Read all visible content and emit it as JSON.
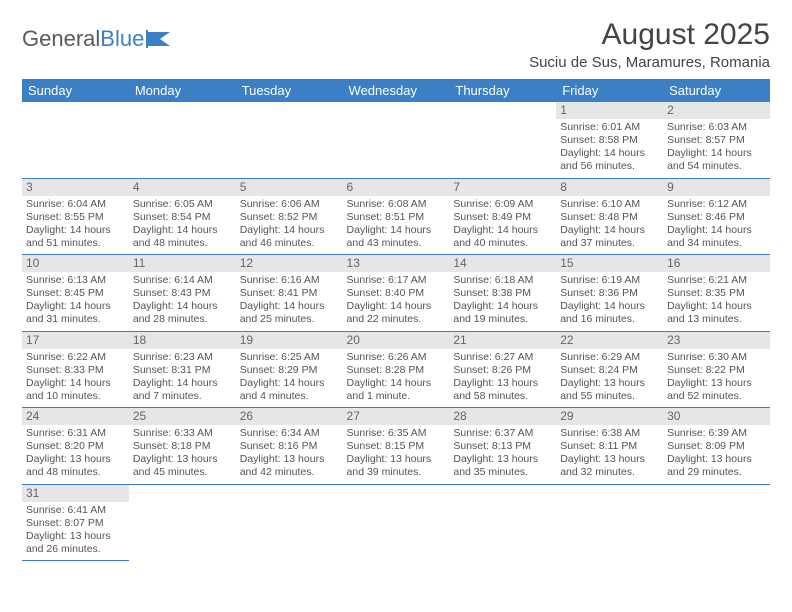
{
  "brand": {
    "part1": "General",
    "part2": "Blue"
  },
  "title": "August 2025",
  "location": "Suciu de Sus, Maramures, Romania",
  "colors": {
    "header_bg": "#3b7fc4",
    "header_fg": "#ffffff",
    "daynum_bg": "#e6e6e6",
    "rule": "#3b7fc4",
    "text": "#555555"
  },
  "dayHeaders": [
    "Sunday",
    "Monday",
    "Tuesday",
    "Wednesday",
    "Thursday",
    "Friday",
    "Saturday"
  ],
  "calendar": {
    "startWeekday": 5,
    "daysInMonth": 31
  },
  "days": {
    "1": {
      "sunrise": "6:01 AM",
      "sunset": "8:58 PM",
      "daylight": "14 hours and 56 minutes."
    },
    "2": {
      "sunrise": "6:03 AM",
      "sunset": "8:57 PM",
      "daylight": "14 hours and 54 minutes."
    },
    "3": {
      "sunrise": "6:04 AM",
      "sunset": "8:55 PM",
      "daylight": "14 hours and 51 minutes."
    },
    "4": {
      "sunrise": "6:05 AM",
      "sunset": "8:54 PM",
      "daylight": "14 hours and 48 minutes."
    },
    "5": {
      "sunrise": "6:06 AM",
      "sunset": "8:52 PM",
      "daylight": "14 hours and 46 minutes."
    },
    "6": {
      "sunrise": "6:08 AM",
      "sunset": "8:51 PM",
      "daylight": "14 hours and 43 minutes."
    },
    "7": {
      "sunrise": "6:09 AM",
      "sunset": "8:49 PM",
      "daylight": "14 hours and 40 minutes."
    },
    "8": {
      "sunrise": "6:10 AM",
      "sunset": "8:48 PM",
      "daylight": "14 hours and 37 minutes."
    },
    "9": {
      "sunrise": "6:12 AM",
      "sunset": "8:46 PM",
      "daylight": "14 hours and 34 minutes."
    },
    "10": {
      "sunrise": "6:13 AM",
      "sunset": "8:45 PM",
      "daylight": "14 hours and 31 minutes."
    },
    "11": {
      "sunrise": "6:14 AM",
      "sunset": "8:43 PM",
      "daylight": "14 hours and 28 minutes."
    },
    "12": {
      "sunrise": "6:16 AM",
      "sunset": "8:41 PM",
      "daylight": "14 hours and 25 minutes."
    },
    "13": {
      "sunrise": "6:17 AM",
      "sunset": "8:40 PM",
      "daylight": "14 hours and 22 minutes."
    },
    "14": {
      "sunrise": "6:18 AM",
      "sunset": "8:38 PM",
      "daylight": "14 hours and 19 minutes."
    },
    "15": {
      "sunrise": "6:19 AM",
      "sunset": "8:36 PM",
      "daylight": "14 hours and 16 minutes."
    },
    "16": {
      "sunrise": "6:21 AM",
      "sunset": "8:35 PM",
      "daylight": "14 hours and 13 minutes."
    },
    "17": {
      "sunrise": "6:22 AM",
      "sunset": "8:33 PM",
      "daylight": "14 hours and 10 minutes."
    },
    "18": {
      "sunrise": "6:23 AM",
      "sunset": "8:31 PM",
      "daylight": "14 hours and 7 minutes."
    },
    "19": {
      "sunrise": "6:25 AM",
      "sunset": "8:29 PM",
      "daylight": "14 hours and 4 minutes."
    },
    "20": {
      "sunrise": "6:26 AM",
      "sunset": "8:28 PM",
      "daylight": "14 hours and 1 minute."
    },
    "21": {
      "sunrise": "6:27 AM",
      "sunset": "8:26 PM",
      "daylight": "13 hours and 58 minutes."
    },
    "22": {
      "sunrise": "6:29 AM",
      "sunset": "8:24 PM",
      "daylight": "13 hours and 55 minutes."
    },
    "23": {
      "sunrise": "6:30 AM",
      "sunset": "8:22 PM",
      "daylight": "13 hours and 52 minutes."
    },
    "24": {
      "sunrise": "6:31 AM",
      "sunset": "8:20 PM",
      "daylight": "13 hours and 48 minutes."
    },
    "25": {
      "sunrise": "6:33 AM",
      "sunset": "8:18 PM",
      "daylight": "13 hours and 45 minutes."
    },
    "26": {
      "sunrise": "6:34 AM",
      "sunset": "8:16 PM",
      "daylight": "13 hours and 42 minutes."
    },
    "27": {
      "sunrise": "6:35 AM",
      "sunset": "8:15 PM",
      "daylight": "13 hours and 39 minutes."
    },
    "28": {
      "sunrise": "6:37 AM",
      "sunset": "8:13 PM",
      "daylight": "13 hours and 35 minutes."
    },
    "29": {
      "sunrise": "6:38 AM",
      "sunset": "8:11 PM",
      "daylight": "13 hours and 32 minutes."
    },
    "30": {
      "sunrise": "6:39 AM",
      "sunset": "8:09 PM",
      "daylight": "13 hours and 29 minutes."
    },
    "31": {
      "sunrise": "6:41 AM",
      "sunset": "8:07 PM",
      "daylight": "13 hours and 26 minutes."
    }
  },
  "labels": {
    "sunrise": "Sunrise: ",
    "sunset": "Sunset: ",
    "daylight": "Daylight: "
  }
}
